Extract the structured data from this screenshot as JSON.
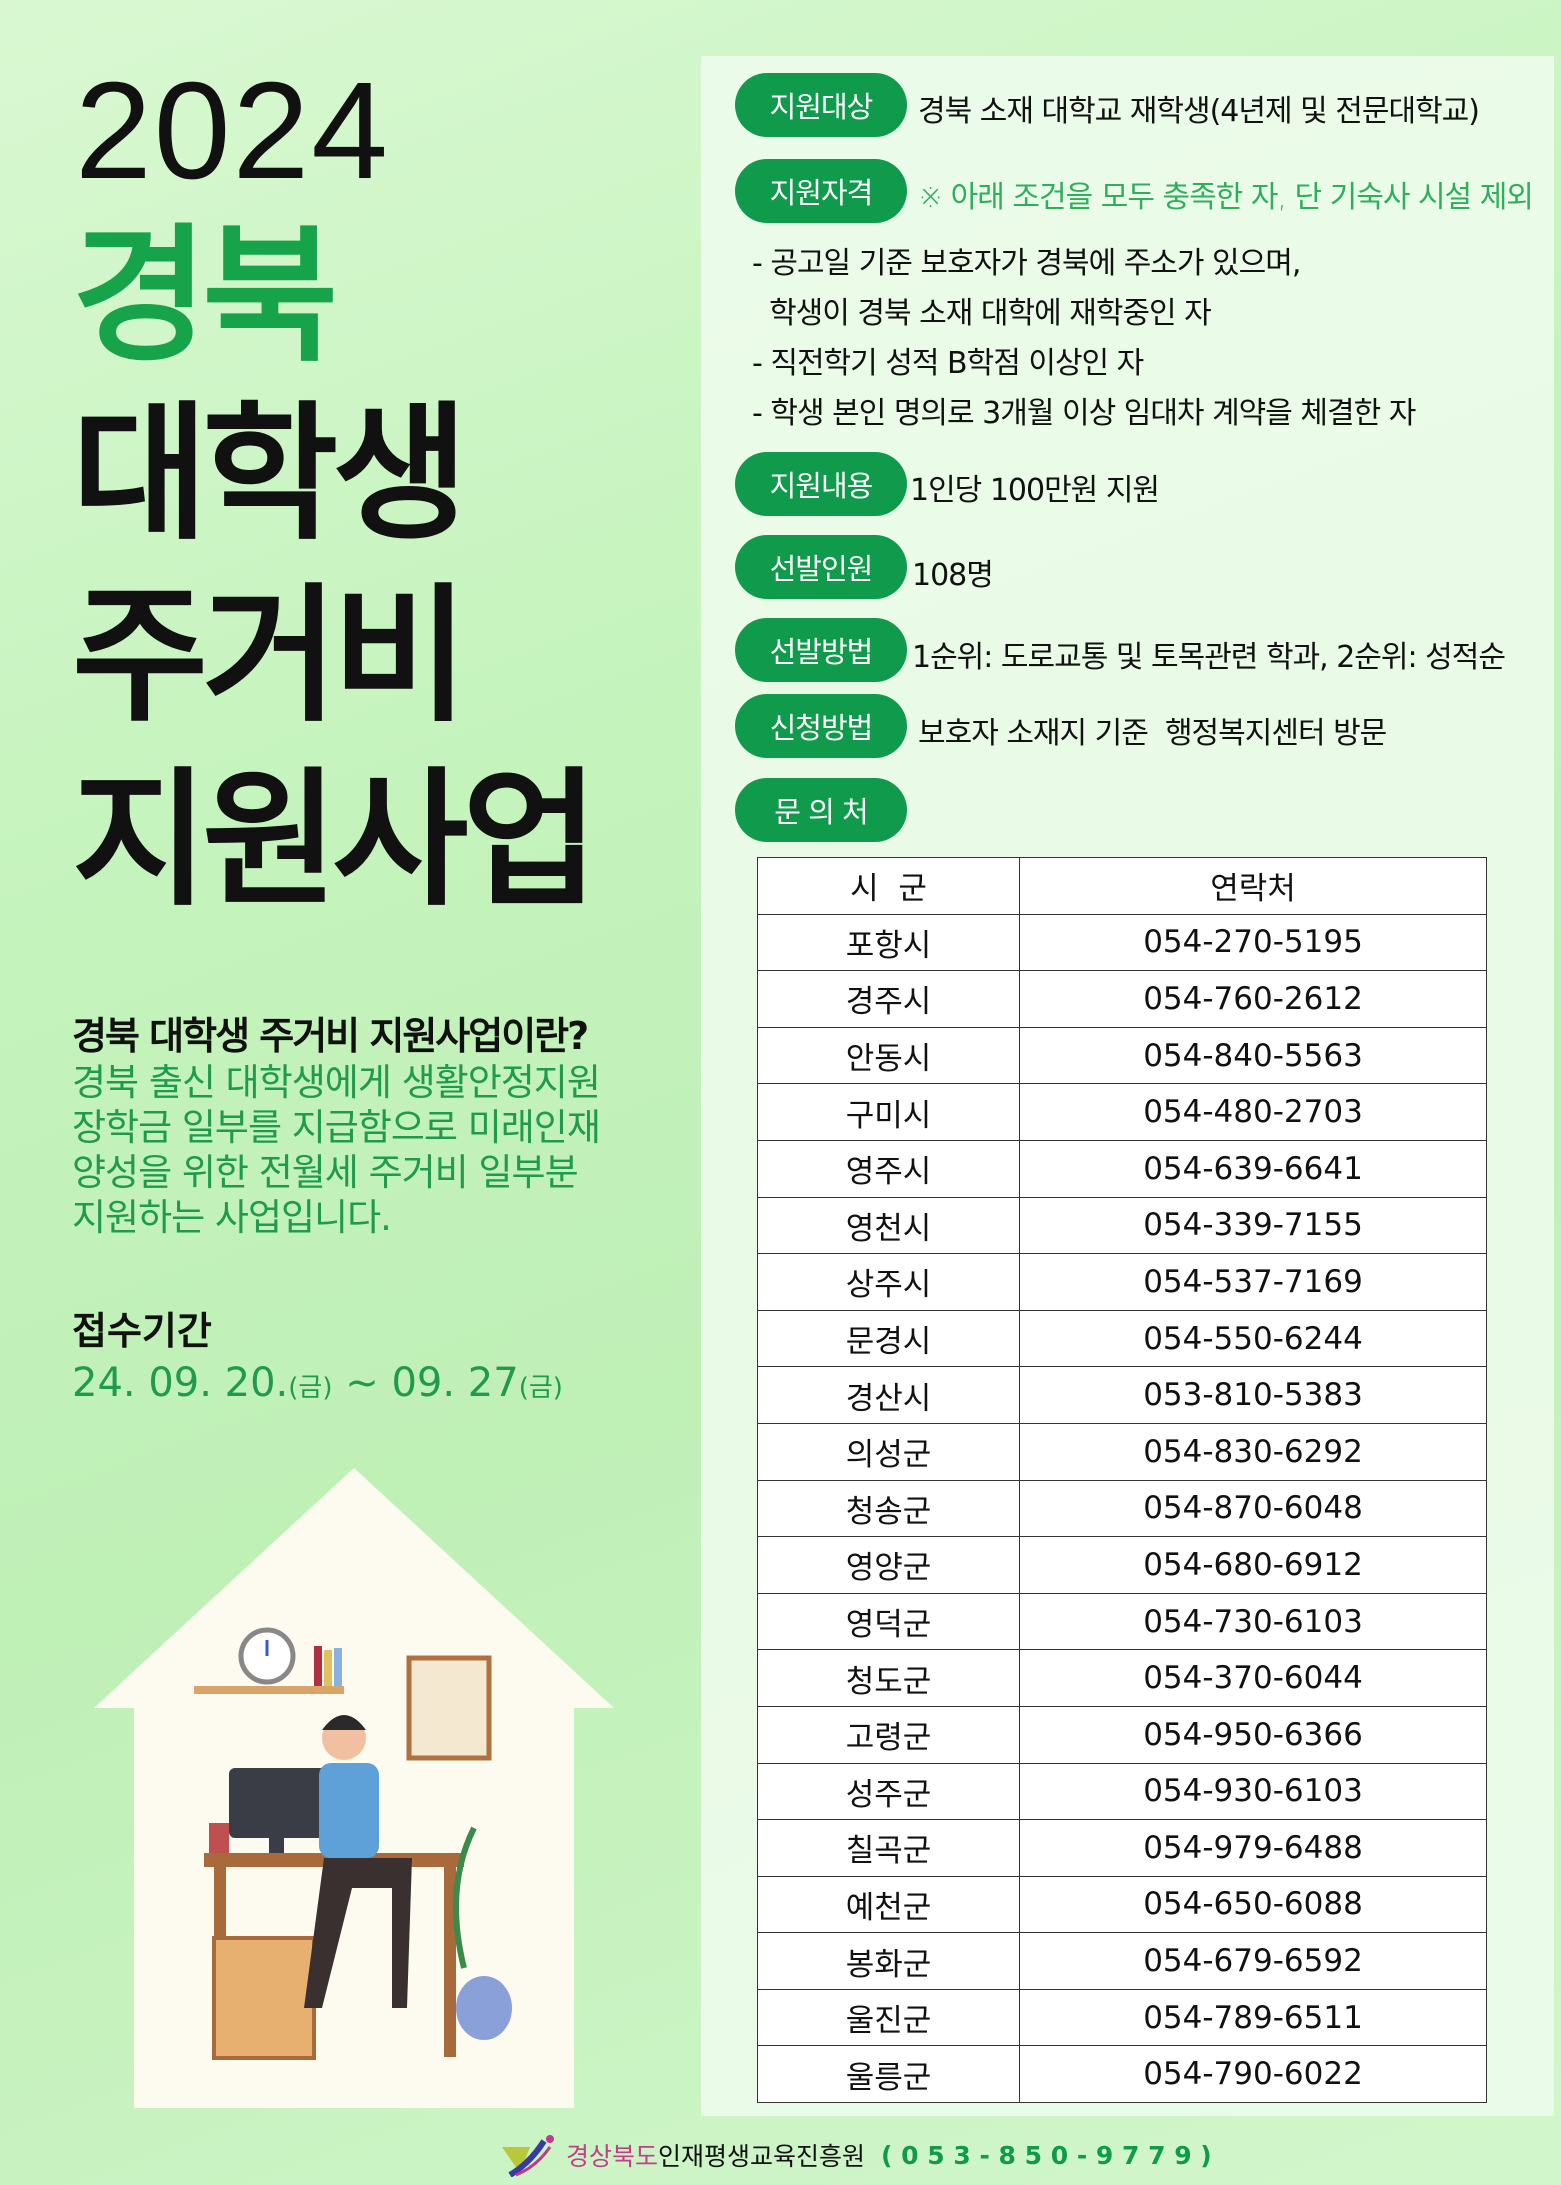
{
  "title": {
    "year": "2024",
    "line1": "경북",
    "line2": "대학생",
    "line3": "주거비",
    "line4": "지원사업"
  },
  "intro": {
    "heading": "경북 대학생 주거비 지원사업이란?",
    "lines": [
      "경북 출신 대학생에게 생활안정지원",
      "장학금 일부를 지급함으로 미래인재",
      "양성을 위한 전월세 주거비 일부분",
      "지원하는 사업입니다."
    ]
  },
  "period": {
    "label": "접수기간",
    "start": "24. 09. 20.",
    "start_day": "(금)",
    "sep": " ~ ",
    "end": "09. 27",
    "end_day": "(금)"
  },
  "info": [
    {
      "label": "지원대상",
      "value": "경북 소재 대학교 재학생(4년제 및 전문대학교)"
    },
    {
      "label": "지원자격",
      "value": "※ 아래 조건을 모두 충족한 자, 단 기숙사 시설 제외"
    },
    {
      "label": "지원내용",
      "value": "1인당 100만원 지원"
    },
    {
      "label": "선발인원",
      "value": "108명"
    },
    {
      "label": "선발방법",
      "value": "1순위: 도로교통 및 토목관련 학과, 2순위: 성적순"
    },
    {
      "label": "신청방법",
      "value": "보호자 소재지 기준  행정복지센터 방문"
    },
    {
      "label": "문 의 처",
      "value": ""
    }
  ],
  "conditions": [
    "- 공고일 기준 보호자가 경북에 주소가 있으며,",
    "  학생이 경북 소재 대학에 재학중인 자",
    "- 직전학기 성적 B학점 이상인 자",
    "- 학생 본인 명의로 3개월 이상 임대차 계약을 체결한 자"
  ],
  "contacts": {
    "headers": [
      "시  군",
      "연락처"
    ],
    "rows": [
      [
        "포항시",
        "054-270-5195"
      ],
      [
        "경주시",
        "054-760-2612"
      ],
      [
        "안동시",
        "054-840-5563"
      ],
      [
        "구미시",
        "054-480-2703"
      ],
      [
        "영주시",
        "054-639-6641"
      ],
      [
        "영천시",
        "054-339-7155"
      ],
      [
        "상주시",
        "054-537-7169"
      ],
      [
        "문경시",
        "054-550-6244"
      ],
      [
        "경산시",
        "053-810-5383"
      ],
      [
        "의성군",
        "054-830-6292"
      ],
      [
        "청송군",
        "054-870-6048"
      ],
      [
        "영양군",
        "054-680-6912"
      ],
      [
        "영덕군",
        "054-730-6103"
      ],
      [
        "청도군",
        "054-370-6044"
      ],
      [
        "고령군",
        "054-950-6366"
      ],
      [
        "성주군",
        "054-930-6103"
      ],
      [
        "칠곡군",
        "054-979-6488"
      ],
      [
        "예천군",
        "054-650-6088"
      ],
      [
        "봉화군",
        "054-679-6592"
      ],
      [
        "울진군",
        "054-789-6511"
      ],
      [
        "울릉군",
        "054-790-6022"
      ]
    ]
  },
  "footer": {
    "org_a": "경상북도",
    "org_b": "인재평생교육진흥원",
    "phone": "( 0 5 3 - 8 5 0 - 9 7 7 9 )"
  },
  "colors": {
    "accent": "#109a4b",
    "text_green": "#1f9a4e",
    "bg": "#c4f3bc"
  }
}
